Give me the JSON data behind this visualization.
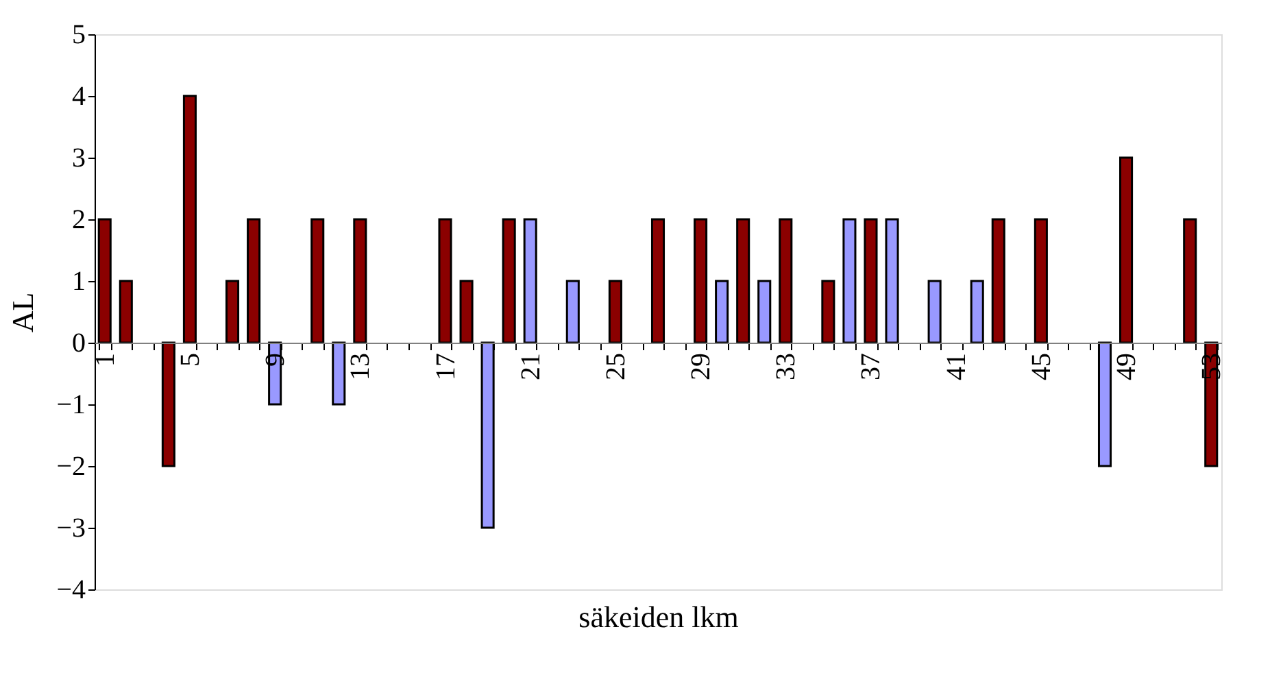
{
  "chart_data": {
    "type": "bar",
    "xlabel": "säkeiden lkm",
    "ylabel": "AL",
    "categories": [
      "1",
      null,
      null,
      null,
      "5",
      null,
      null,
      null,
      "9",
      null,
      null,
      null,
      "13",
      null,
      null,
      null,
      "17",
      null,
      null,
      null,
      "21",
      null,
      null,
      null,
      "25",
      null,
      null,
      null,
      "29",
      null,
      null,
      null,
      "33",
      null,
      null,
      null,
      "37",
      null,
      null,
      null,
      "41",
      null,
      null,
      null,
      "45",
      null,
      null,
      null,
      "49",
      null,
      null,
      null,
      "53"
    ],
    "values": [
      2,
      1,
      null,
      -2,
      4,
      null,
      1,
      2,
      -1,
      null,
      2,
      -1,
      2,
      null,
      null,
      null,
      2,
      1,
      -3,
      2,
      2,
      null,
      1,
      null,
      1,
      null,
      2,
      null,
      2,
      1,
      2,
      1,
      2,
      null,
      1,
      2,
      2,
      2,
      null,
      1,
      null,
      1,
      2,
      null,
      2,
      null,
      null,
      -2,
      3,
      null,
      null,
      2,
      -2
    ],
    "colors": [
      "#8b0000",
      "#8b0000",
      null,
      "#8b0000",
      "#8b0000",
      null,
      "#8b0000",
      "#8b0000",
      "#9999ff",
      null,
      "#8b0000",
      "#9999ff",
      "#8b0000",
      null,
      null,
      null,
      "#8b0000",
      "#8b0000",
      "#9999ff",
      "#8b0000",
      "#9999ff",
      null,
      "#9999ff",
      null,
      "#8b0000",
      null,
      "#8b0000",
      null,
      "#8b0000",
      "#9999ff",
      "#8b0000",
      "#9999ff",
      "#8b0000",
      null,
      "#8b0000",
      "#9999ff",
      "#8b0000",
      "#9999ff",
      null,
      "#9999ff",
      null,
      "#9999ff",
      "#8b0000",
      null,
      "#8b0000",
      null,
      null,
      "#9999ff",
      "#8b0000",
      null,
      null,
      "#8b0000",
      "#8b0000"
    ],
    "ylim": [
      -4,
      5
    ],
    "yticks": [
      -4,
      -3,
      -2,
      -1,
      0,
      1,
      2,
      3,
      4,
      5
    ],
    "grid": false
  }
}
